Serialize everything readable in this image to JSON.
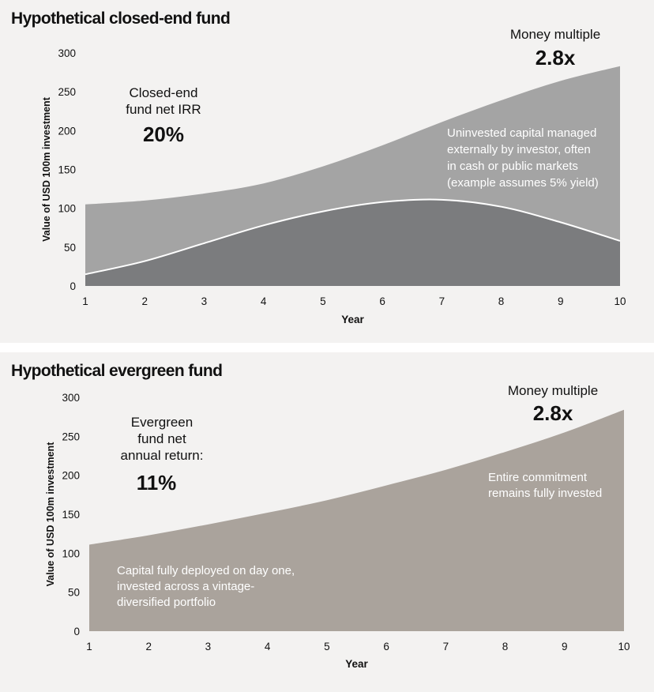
{
  "chart_data": [
    {
      "type": "area",
      "title": "Hypothetical closed-end fund",
      "xlabel": "Year",
      "ylabel": "Value of USD 100m investment",
      "x": [
        1,
        2,
        3,
        4,
        5,
        6,
        7,
        8,
        9,
        10
      ],
      "ylim": [
        0,
        300
      ],
      "yticks": [
        0,
        50,
        100,
        150,
        200,
        250,
        300
      ],
      "grid": false,
      "stacked": true,
      "series": [
        {
          "values": [
            15,
            32,
            55,
            78,
            96,
            108,
            111,
            102,
            82,
            58
          ],
          "color": "#7b7c7e"
        },
        {
          "values": [
            90,
            78,
            64,
            54,
            58,
            73,
            100,
            137,
            182,
            225
          ],
          "color": "#a4a4a4"
        }
      ],
      "totals": [
        105,
        110,
        119,
        132,
        154,
        181,
        211,
        239,
        264,
        283
      ],
      "annotations": {
        "irr_label_lines": [
          "Closed-end",
          "fund net IRR"
        ],
        "irr_value": "20%",
        "multiple_label": "Money multiple",
        "multiple_value": "2.8x",
        "uninvested_lines": [
          "Uninvested capital managed",
          "externally by investor, often",
          "in cash or public markets",
          "(example assumes 5% yield)"
        ]
      }
    },
    {
      "type": "area",
      "title": "Hypothetical evergreen fund",
      "xlabel": "Year",
      "ylabel": "Value of USD 100m investment",
      "x": [
        1,
        2,
        3,
        4,
        5,
        6,
        7,
        8,
        9,
        10
      ],
      "ylim": [
        0,
        300
      ],
      "yticks": [
        0,
        50,
        100,
        150,
        200,
        250,
        300
      ],
      "grid": false,
      "series": [
        {
          "values": [
            111,
            123,
            137,
            152,
            168,
            187,
            207,
            230,
            255,
            284
          ],
          "color": "#aaa39c"
        }
      ],
      "annotations": {
        "return_label_lines": [
          "Evergreen",
          "fund net",
          "annual return:"
        ],
        "return_value": "11%",
        "multiple_label": "Money multiple",
        "multiple_value": "2.8x",
        "invested_lines": [
          "Entire commitment",
          "remains fully invested"
        ],
        "deployed_lines": [
          "Capital fully deployed on day one,",
          "invested across a vintage-",
          "diversified portfolio"
        ]
      }
    }
  ]
}
